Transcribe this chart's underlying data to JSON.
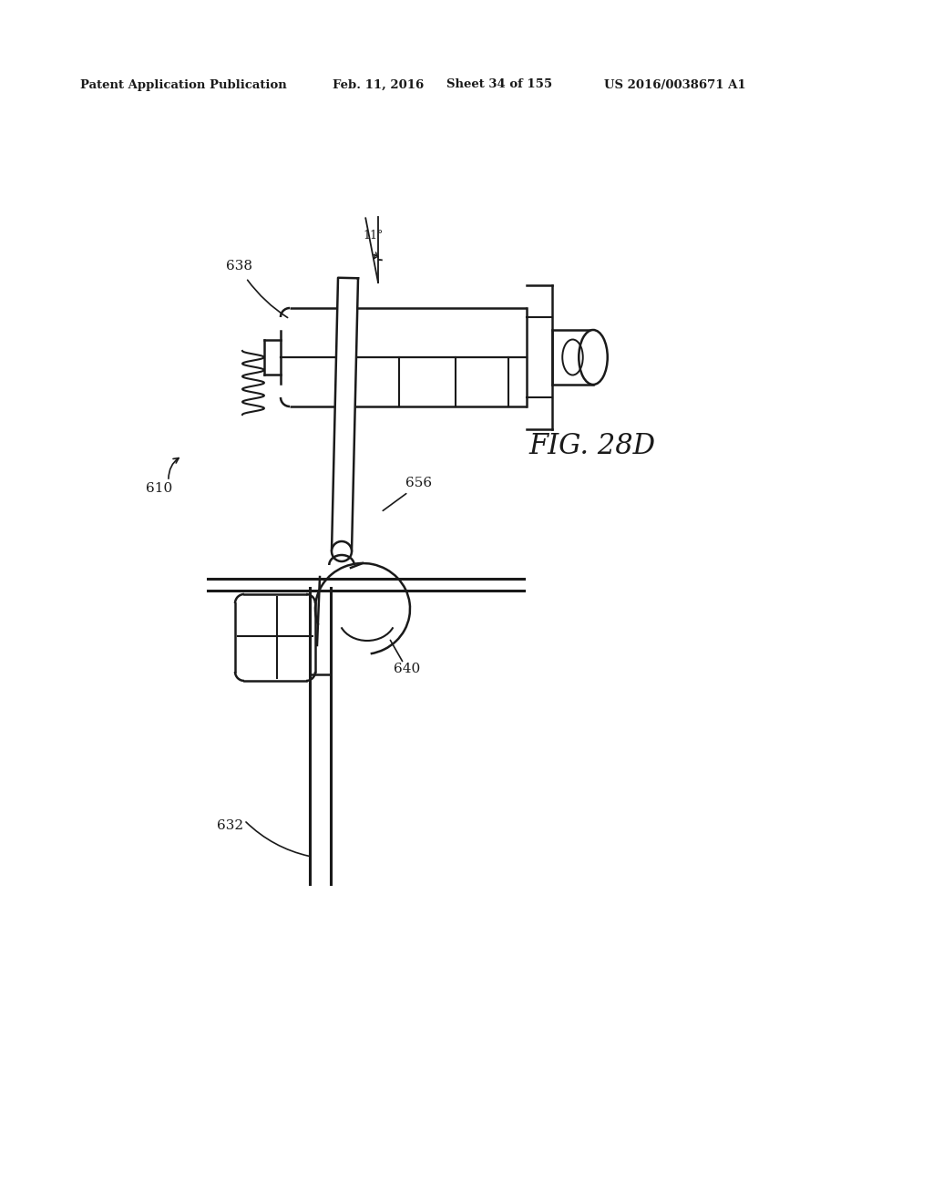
{
  "patent_header_left": "Patent Application Publication",
  "patent_header_mid1": "Feb. 11, 2016",
  "patent_header_mid2": "Sheet 34 of 155",
  "patent_header_right": "US 2016/0038671 A1",
  "fig_label": "FIG. 28D",
  "angle_label": "11°",
  "ref_638": "638",
  "ref_610": "610",
  "ref_656": "656",
  "ref_640": "640",
  "ref_632": "632",
  "bg_color": "#ffffff",
  "line_color": "#1a1a1a",
  "lw_main": 1.8,
  "lw_thin": 1.3,
  "lw_thick": 2.2
}
